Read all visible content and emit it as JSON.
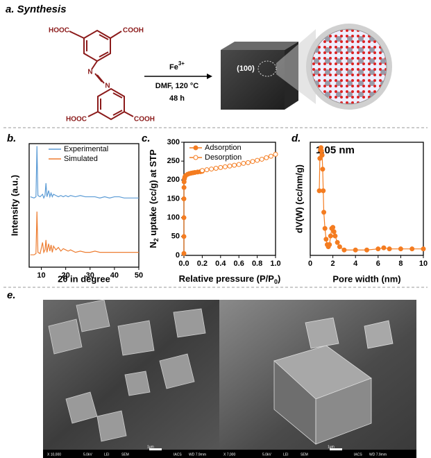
{
  "panel_a": {
    "label": "a. Synthesis",
    "molecule_labels": [
      "HOOC",
      "COOH",
      "N",
      "N",
      "HOOC",
      "COOH"
    ],
    "reagent": "Fe",
    "reagent_charge": "3+",
    "conditions": [
      "DMF, 120 °C",
      "48 h"
    ],
    "facet": "(100)"
  },
  "chart_data": [
    {
      "panel": "b.",
      "type": "line",
      "xlabel": "2θ in degree",
      "ylabel": "Intensity (a.u.)",
      "x": [
        5.5,
        7,
        7.8,
        8.2,
        8.6,
        9.5,
        10.5,
        11,
        11.5,
        11.9,
        12.3,
        13,
        13.5,
        14,
        14.5,
        15,
        16,
        17,
        18,
        19,
        20,
        21,
        22,
        24,
        26,
        28,
        30,
        32,
        34,
        36,
        38,
        40,
        42,
        44,
        46,
        48,
        50
      ],
      "xlim": [
        5,
        50
      ],
      "xticks": [
        10,
        20,
        30,
        40,
        50
      ],
      "ylim": [
        0,
        100
      ],
      "legend": "top-right",
      "series": [
        {
          "name": "Experimental",
          "color": "#5b9bd5",
          "values": [
            57,
            56,
            57,
            98,
            58,
            57,
            59,
            56,
            58,
            68,
            57,
            62,
            57,
            60,
            57,
            59,
            58,
            57,
            58,
            57,
            58,
            57,
            58,
            57,
            58,
            57,
            57,
            57,
            56,
            57,
            56,
            57,
            57,
            56,
            56,
            56,
            56
          ]
        },
        {
          "name": "Simulated",
          "color": "#ed7d31",
          "values": [
            10,
            10,
            11,
            45,
            12,
            11,
            20,
            12,
            14,
            22,
            12,
            19,
            13,
            18,
            12,
            17,
            14,
            16,
            13,
            15,
            14,
            13,
            14,
            12,
            13,
            12,
            12,
            13,
            12,
            12,
            12,
            12,
            12,
            12,
            12,
            12,
            12
          ]
        }
      ]
    },
    {
      "panel": "c.",
      "type": "scatter",
      "xlabel_parts": [
        "Relative pressure (P/P",
        "0",
        ")"
      ],
      "ylabel_parts": [
        "N",
        "2",
        " uptake (cc/g) at STP"
      ],
      "xlim": [
        0,
        1
      ],
      "xticks": [
        {
          "value": 0,
          "label": "0.0"
        },
        0.2,
        0.4,
        0.6,
        0.8,
        {
          "value": 1,
          "label": "1.0"
        }
      ],
      "ylim": [
        0,
        300
      ],
      "yticks": [
        0,
        50,
        100,
        150,
        200,
        250,
        300
      ],
      "legend": "top-left",
      "series": [
        {
          "name": "Adsorption",
          "color": "#f47c20",
          "marker": "filled",
          "x": [
            0,
            0,
            0,
            0,
            0.001,
            0.002,
            0.005,
            0.01,
            0.02,
            0.04,
            0.06,
            0.08,
            0.1,
            0.12,
            0.15,
            0.18,
            0.2
          ],
          "values": [
            5,
            50,
            100,
            150,
            180,
            195,
            203,
            208,
            212,
            215,
            217,
            218,
            219,
            220,
            221,
            222,
            223
          ]
        },
        {
          "name": "Desorption",
          "color": "#f47c20",
          "marker": "open",
          "x": [
            0.2,
            0.25,
            0.3,
            0.35,
            0.4,
            0.45,
            0.5,
            0.55,
            0.6,
            0.65,
            0.7,
            0.75,
            0.8,
            0.85,
            0.9,
            0.95,
            1
          ],
          "values": [
            225,
            227,
            229,
            231,
            233,
            235,
            237,
            239,
            241,
            244,
            246,
            249,
            252,
            255,
            259,
            263,
            268
          ]
        }
      ]
    },
    {
      "panel": "d.",
      "type": "line",
      "markers": true,
      "annotation": "1.05 nm",
      "xlabel": "Pore width (nm)",
      "ylabel": "dV(W) (cc/nm/g)",
      "x": [
        0.8,
        0.85,
        0.9,
        0.95,
        1.0,
        1.05,
        1.1,
        1.15,
        1.2,
        1.3,
        1.4,
        1.5,
        1.6,
        1.7,
        1.8,
        1.9,
        2.0,
        2.1,
        2.2,
        2.4,
        2.6,
        3,
        4,
        5,
        6,
        6.5,
        7,
        8,
        9,
        10
      ],
      "xlim": [
        0,
        10
      ],
      "xticks": [
        0,
        2,
        4,
        6,
        8,
        10
      ],
      "ylim": [
        0,
        105
      ],
      "series": [
        {
          "color": "#f47c20",
          "values": [
            60,
            90,
            98,
            100,
            97,
            93,
            80,
            60,
            40,
            25,
            15,
            10,
            8,
            10,
            18,
            25,
            26,
            22,
            18,
            12,
            8,
            5,
            5,
            5,
            6,
            7,
            6,
            6,
            6,
            6
          ]
        }
      ]
    }
  ],
  "panel_e": {
    "label": "e.",
    "images": [
      {
        "info": [
          "X 10,000",
          "5.0kV",
          "LEI",
          "SEM",
          "1μm",
          "IACS",
          "WD 7.9mm"
        ]
      },
      {
        "info": [
          "X 7,000",
          "5.0kV",
          "LEI",
          "SEM",
          "1μm",
          "IACS",
          "WD 7.9mm"
        ]
      }
    ]
  }
}
